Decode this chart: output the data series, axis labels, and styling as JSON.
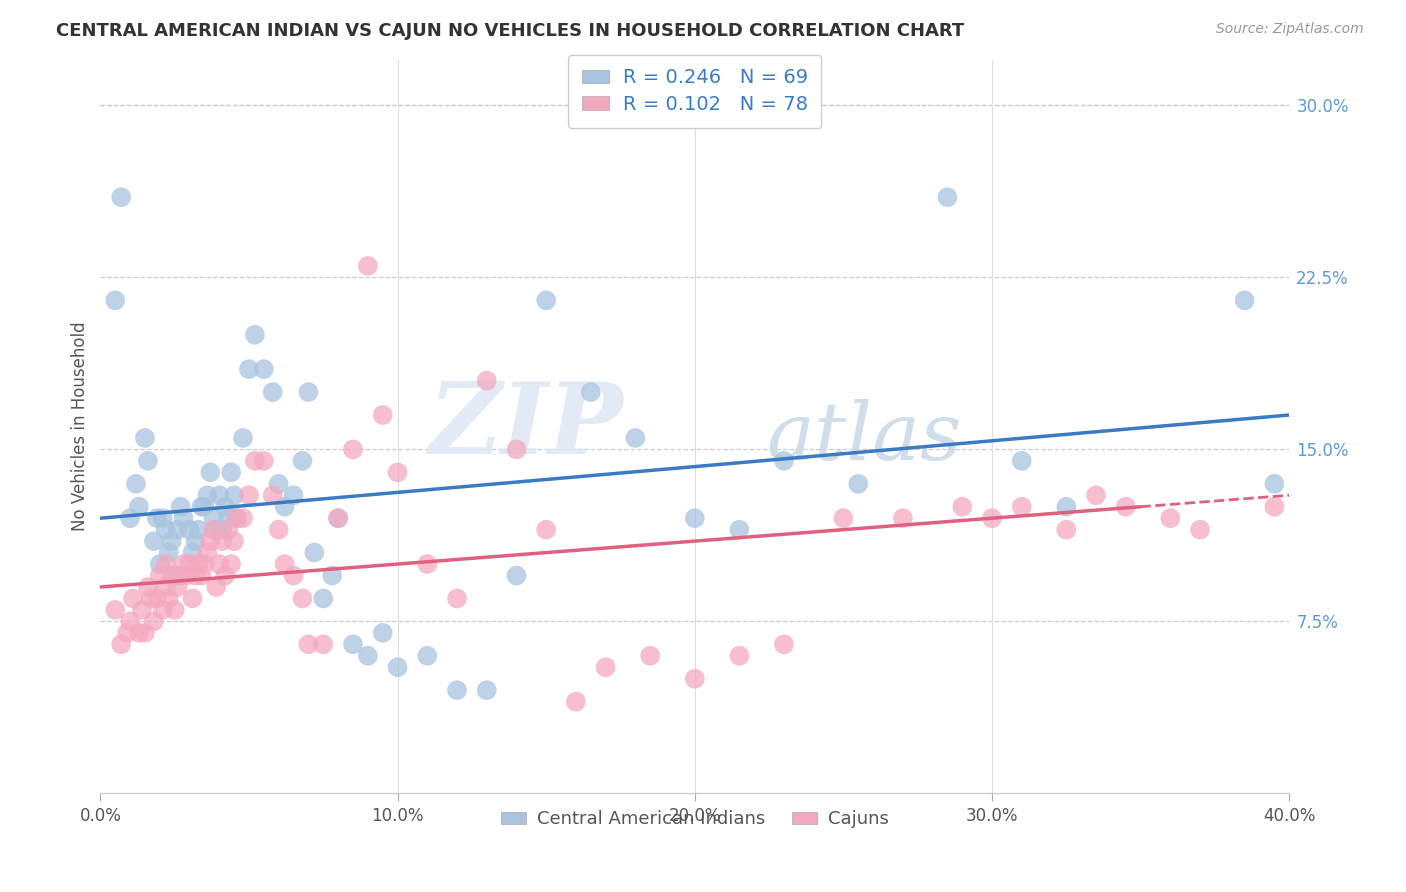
{
  "title": "CENTRAL AMERICAN INDIAN VS CAJUN NO VEHICLES IN HOUSEHOLD CORRELATION CHART",
  "source": "Source: ZipAtlas.com",
  "ylabel": "No Vehicles in Household",
  "xlim": [
    0.0,
    0.4
  ],
  "ylim": [
    0.0,
    0.32
  ],
  "xticks": [
    0.0,
    0.1,
    0.2,
    0.3,
    0.4
  ],
  "xticklabels": [
    "0.0%",
    "10.0%",
    "20.0%",
    "30.0%",
    "40.0%"
  ],
  "ytick_vals": [
    0.0,
    0.075,
    0.15,
    0.225,
    0.3
  ],
  "yticklabels_right": [
    "",
    "7.5%",
    "15.0%",
    "22.5%",
    "30.0%"
  ],
  "r_blue": 0.246,
  "n_blue": 69,
  "r_pink": 0.102,
  "n_pink": 78,
  "blue_color": "#a8c4e0",
  "pink_color": "#f4a8c0",
  "line_blue": "#3a7cc4",
  "line_pink": "#e06080",
  "watermark_zip": "ZIP",
  "watermark_atlas": "atlas",
  "legend_label_blue": "Central American Indians",
  "legend_label_pink": "Cajuns",
  "blue_scatter_x": [
    0.005,
    0.007,
    0.01,
    0.012,
    0.013,
    0.015,
    0.016,
    0.018,
    0.019,
    0.02,
    0.021,
    0.022,
    0.023,
    0.024,
    0.025,
    0.026,
    0.027,
    0.028,
    0.03,
    0.031,
    0.032,
    0.033,
    0.034,
    0.035,
    0.036,
    0.037,
    0.038,
    0.039,
    0.04,
    0.041,
    0.042,
    0.043,
    0.044,
    0.045,
    0.046,
    0.048,
    0.05,
    0.052,
    0.055,
    0.058,
    0.06,
    0.062,
    0.065,
    0.068,
    0.07,
    0.072,
    0.075,
    0.078,
    0.08,
    0.085,
    0.09,
    0.095,
    0.1,
    0.11,
    0.12,
    0.13,
    0.14,
    0.15,
    0.165,
    0.18,
    0.2,
    0.215,
    0.23,
    0.255,
    0.285,
    0.31,
    0.325,
    0.385,
    0.395
  ],
  "blue_scatter_y": [
    0.215,
    0.26,
    0.12,
    0.135,
    0.125,
    0.155,
    0.145,
    0.11,
    0.12,
    0.1,
    0.12,
    0.115,
    0.105,
    0.11,
    0.095,
    0.115,
    0.125,
    0.12,
    0.115,
    0.105,
    0.11,
    0.115,
    0.125,
    0.125,
    0.13,
    0.14,
    0.12,
    0.115,
    0.13,
    0.115,
    0.125,
    0.12,
    0.14,
    0.13,
    0.12,
    0.155,
    0.185,
    0.2,
    0.185,
    0.175,
    0.135,
    0.125,
    0.13,
    0.145,
    0.175,
    0.105,
    0.085,
    0.095,
    0.12,
    0.065,
    0.06,
    0.07,
    0.055,
    0.06,
    0.045,
    0.045,
    0.095,
    0.215,
    0.175,
    0.155,
    0.12,
    0.115,
    0.145,
    0.135,
    0.26,
    0.145,
    0.125,
    0.215,
    0.135
  ],
  "pink_scatter_x": [
    0.005,
    0.007,
    0.009,
    0.01,
    0.011,
    0.013,
    0.014,
    0.015,
    0.016,
    0.017,
    0.018,
    0.019,
    0.02,
    0.021,
    0.022,
    0.022,
    0.023,
    0.024,
    0.025,
    0.026,
    0.027,
    0.028,
    0.029,
    0.03,
    0.031,
    0.032,
    0.033,
    0.034,
    0.035,
    0.036,
    0.037,
    0.038,
    0.039,
    0.04,
    0.041,
    0.042,
    0.043,
    0.044,
    0.045,
    0.046,
    0.048,
    0.05,
    0.052,
    0.055,
    0.058,
    0.06,
    0.062,
    0.065,
    0.068,
    0.07,
    0.075,
    0.08,
    0.085,
    0.09,
    0.095,
    0.1,
    0.11,
    0.12,
    0.13,
    0.14,
    0.15,
    0.16,
    0.17,
    0.185,
    0.2,
    0.215,
    0.23,
    0.25,
    0.27,
    0.29,
    0.3,
    0.31,
    0.325,
    0.335,
    0.345,
    0.36,
    0.37,
    0.395
  ],
  "pink_scatter_y": [
    0.08,
    0.065,
    0.07,
    0.075,
    0.085,
    0.07,
    0.08,
    0.07,
    0.09,
    0.085,
    0.075,
    0.085,
    0.095,
    0.08,
    0.09,
    0.1,
    0.085,
    0.095,
    0.08,
    0.09,
    0.095,
    0.1,
    0.095,
    0.1,
    0.085,
    0.095,
    0.1,
    0.095,
    0.1,
    0.105,
    0.11,
    0.115,
    0.09,
    0.1,
    0.11,
    0.095,
    0.115,
    0.1,
    0.11,
    0.12,
    0.12,
    0.13,
    0.145,
    0.145,
    0.13,
    0.115,
    0.1,
    0.095,
    0.085,
    0.065,
    0.065,
    0.12,
    0.15,
    0.23,
    0.165,
    0.14,
    0.1,
    0.085,
    0.18,
    0.15,
    0.115,
    0.04,
    0.055,
    0.06,
    0.05,
    0.06,
    0.065,
    0.12,
    0.12,
    0.125,
    0.12,
    0.125,
    0.115,
    0.13,
    0.125,
    0.12,
    0.115,
    0.125
  ],
  "trendline_blue_x0": 0.0,
  "trendline_blue_y0": 0.12,
  "trendline_blue_x1": 0.4,
  "trendline_blue_y1": 0.165,
  "trendline_pink_x0": 0.0,
  "trendline_pink_y0": 0.09,
  "trendline_pink_x1": 0.35,
  "trendline_pink_y1": 0.125
}
